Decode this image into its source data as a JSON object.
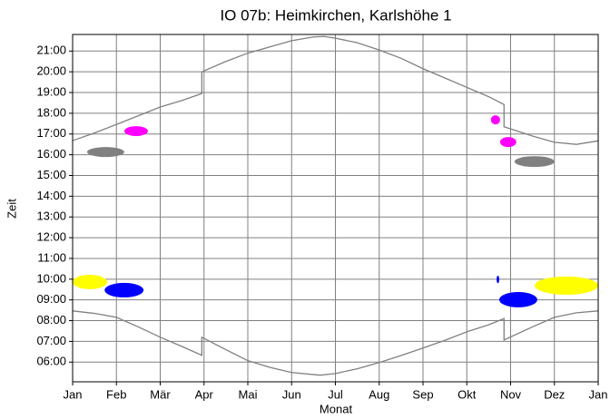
{
  "chart_data": {
    "type": "shadow-calendar",
    "title": "IO 07b: Heimkirchen, Karlshöhe 1",
    "x_label": "Monat",
    "y_label": "Zeit",
    "xlim": [
      0,
      12
    ],
    "xticks": [
      {
        "value": 0,
        "label": "Jan"
      },
      {
        "value": 1,
        "label": "Feb"
      },
      {
        "value": 2,
        "label": "Mär"
      },
      {
        "value": 3,
        "label": "Apr"
      },
      {
        "value": 4,
        "label": "Mai"
      },
      {
        "value": 5,
        "label": "Jun"
      },
      {
        "value": 6,
        "label": "Jul"
      },
      {
        "value": 7,
        "label": "Aug"
      },
      {
        "value": 8,
        "label": "Sep"
      },
      {
        "value": 9,
        "label": "Okt"
      },
      {
        "value": 10,
        "label": "Nov"
      },
      {
        "value": 11,
        "label": "Dez"
      },
      {
        "value": 12,
        "label": "Jan"
      }
    ],
    "ylim": [
      5.05,
      21.8
    ],
    "yticks": [
      {
        "value": 6,
        "label": "06:00"
      },
      {
        "value": 7,
        "label": "07:00"
      },
      {
        "value": 8,
        "label": "08:00"
      },
      {
        "value": 9,
        "label": "09:00"
      },
      {
        "value": 10,
        "label": "10:00"
      },
      {
        "value": 11,
        "label": "11:00"
      },
      {
        "value": 12,
        "label": "12:00"
      },
      {
        "value": 13,
        "label": "13:00"
      },
      {
        "value": 14,
        "label": "14:00"
      },
      {
        "value": 15,
        "label": "15:00"
      },
      {
        "value": 16,
        "label": "16:00"
      },
      {
        "value": 17,
        "label": "17:00"
      },
      {
        "value": 18,
        "label": "18:00"
      },
      {
        "value": 19,
        "label": "19:00"
      },
      {
        "value": 20,
        "label": "20:00"
      },
      {
        "value": 21,
        "label": "21:00"
      }
    ],
    "grid": true,
    "lines": [
      {
        "color": "#808080",
        "x": [
          0,
          0.5,
          1,
          1.5,
          2,
          2.5,
          2.95,
          2.95,
          3.5,
          4,
          4.5,
          5,
          5.5,
          5.75,
          6,
          6.5,
          7,
          7.5,
          8,
          8.5,
          9,
          9.5,
          9.85,
          9.85,
          10.5,
          11,
          11.5,
          12
        ],
        "values": [
          16.68,
          17.05,
          17.46,
          17.88,
          18.3,
          18.62,
          18.95,
          20.0,
          20.5,
          20.9,
          21.2,
          21.5,
          21.68,
          21.7,
          21.62,
          21.4,
          21.05,
          20.65,
          20.15,
          19.7,
          19.25,
          18.8,
          18.42,
          17.35,
          16.9,
          16.6,
          16.5,
          16.67
        ]
      },
      {
        "color": "#808080",
        "x": [
          0,
          0.5,
          1,
          1.5,
          2,
          2.5,
          2.95,
          2.95,
          3.5,
          4,
          4.5,
          5,
          5.65,
          6,
          6.5,
          7,
          7.5,
          8,
          8.5,
          9,
          9.5,
          9.85,
          9.85,
          10.5,
          11,
          11.5,
          12
        ],
        "values": [
          8.47,
          8.35,
          8.16,
          7.7,
          7.2,
          6.75,
          6.33,
          7.2,
          6.6,
          6.07,
          5.75,
          5.5,
          5.37,
          5.45,
          5.68,
          5.98,
          6.32,
          6.68,
          7.05,
          7.46,
          7.8,
          8.1,
          7.07,
          7.7,
          8.16,
          8.38,
          8.47
        ]
      }
    ],
    "regions": [
      {
        "color": "#808080",
        "x": [
          0.33,
          1.18
        ],
        "y": [
          15.89,
          16.37
        ]
      },
      {
        "color": "#ff00ff",
        "x": [
          1.18,
          1.72
        ],
        "y": [
          16.9,
          17.38
        ]
      },
      {
        "color": "#ffff00",
        "x": [
          0,
          0.79
        ],
        "y": [
          9.52,
          10.21
        ]
      },
      {
        "color": "#0000ff",
        "x": [
          0.73,
          1.62
        ],
        "y": [
          9.12,
          9.82
        ]
      },
      {
        "color": "#ff00ff",
        "x": [
          9.55,
          9.76
        ],
        "y": [
          17.46,
          17.9
        ]
      },
      {
        "color": "#ff00ff",
        "x": [
          9.76,
          10.13
        ],
        "y": [
          16.37,
          16.85
        ]
      },
      {
        "color": "#808080",
        "x": [
          10.09,
          11.0
        ],
        "y": [
          15.41,
          15.93
        ]
      },
      {
        "color": "#0000ff",
        "x": [
          9.68,
          9.74
        ],
        "y": [
          9.8,
          10.17
        ]
      },
      {
        "color": "#0000ff",
        "x": [
          9.74,
          10.61
        ],
        "y": [
          8.64,
          9.38
        ]
      },
      {
        "color": "#ffff00",
        "x": [
          10.55,
          12
        ],
        "y": [
          9.25,
          10.13
        ]
      }
    ]
  }
}
